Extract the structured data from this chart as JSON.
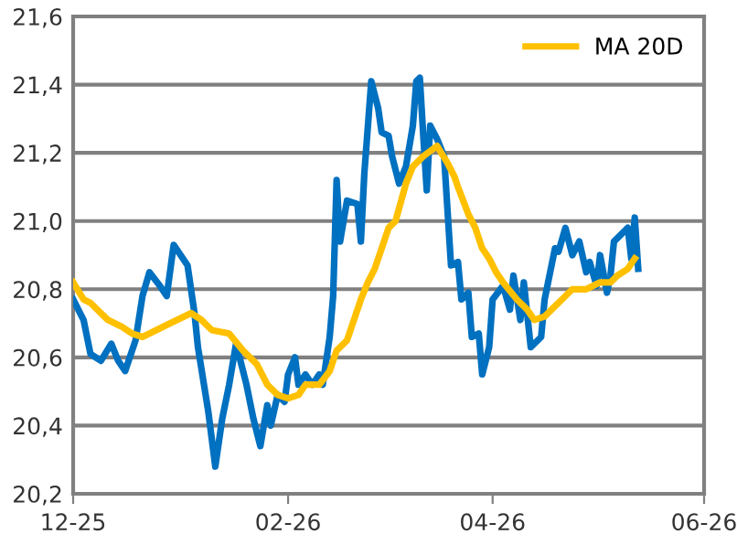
{
  "chart_data": {
    "type": "line",
    "series": [
      {
        "color": "#0070c0",
        "x": [
          "2025-12-01",
          "2025-12-04",
          "2025-12-06",
          "2025-12-09",
          "2025-12-12",
          "2025-12-14",
          "2025-12-16",
          "2025-12-19",
          "2025-12-21",
          "2025-12-23",
          "2025-12-26",
          "2025-12-28",
          "2025-12-30",
          "2026-01-01",
          "2026-01-03",
          "2026-01-05",
          "2026-01-06",
          "2026-01-09",
          "2026-01-11",
          "2026-01-13",
          "2026-01-15",
          "2026-01-17",
          "2026-01-20",
          "2026-01-22",
          "2026-01-24",
          "2026-01-26",
          "2026-01-27",
          "2026-01-29",
          "2026-01-31",
          "2026-02-01",
          "2026-02-03",
          "2026-02-04",
          "2026-02-06",
          "2026-02-08",
          "2026-02-10",
          "2026-02-11",
          "2026-02-13",
          "2026-02-14",
          "2026-02-15",
          "2026-02-16",
          "2026-02-18",
          "2026-02-21",
          "2026-02-22",
          "2026-02-23",
          "2026-02-25",
          "2026-02-27",
          "2026-02-28",
          "2026-03-02",
          "2026-03-03",
          "2026-03-05",
          "2026-03-07",
          "2026-03-09",
          "2026-03-10",
          "2026-03-11",
          "2026-03-12",
          "2026-03-13",
          "2026-03-14",
          "2026-03-16",
          "2026-03-18",
          "2026-03-20",
          "2026-03-22",
          "2026-03-23",
          "2026-03-25",
          "2026-03-26",
          "2026-03-28",
          "2026-03-29",
          "2026-03-31",
          "2026-04-01",
          "2026-04-04",
          "2026-04-06",
          "2026-04-07",
          "2026-04-09",
          "2026-04-10",
          "2026-04-12",
          "2026-04-15",
          "2026-04-16",
          "2026-04-19",
          "2026-04-20",
          "2026-04-22",
          "2026-04-24",
          "2026-04-26",
          "2026-04-28",
          "2026-04-29",
          "2026-05-01",
          "2026-05-02",
          "2026-05-04",
          "2026-05-05",
          "2026-05-06",
          "2026-05-08",
          "2026-05-10",
          "2026-05-11",
          "2026-05-12",
          "2026-05-13"
        ],
        "values": [
          20.77,
          20.71,
          20.61,
          20.59,
          20.64,
          20.59,
          20.56,
          20.65,
          20.78,
          20.85,
          20.81,
          20.78,
          20.93,
          20.9,
          20.87,
          20.73,
          20.63,
          20.44,
          20.28,
          20.42,
          20.52,
          20.64,
          20.52,
          20.42,
          20.34,
          20.46,
          20.4,
          20.49,
          20.47,
          20.55,
          20.6,
          20.52,
          20.55,
          20.52,
          20.55,
          20.52,
          20.66,
          20.78,
          21.12,
          20.94,
          21.06,
          21.05,
          20.94,
          21.14,
          21.41,
          21.33,
          21.26,
          21.25,
          21.19,
          21.11,
          21.16,
          21.28,
          21.41,
          21.42,
          21.25,
          21.09,
          21.28,
          21.24,
          21.19,
          20.87,
          20.88,
          20.77,
          20.79,
          20.66,
          20.67,
          20.55,
          20.63,
          20.77,
          20.81,
          20.74,
          20.84,
          20.71,
          20.82,
          20.63,
          20.66,
          20.77,
          20.92,
          20.91,
          20.98,
          20.9,
          20.94,
          20.85,
          20.88,
          20.81,
          20.9,
          20.79,
          20.84,
          20.94,
          20.96,
          20.98,
          20.89,
          21.01,
          20.86
        ]
      },
      {
        "name": "MA 20D",
        "color": "#ffc000",
        "x": [
          "2025-12-01",
          "2025-12-04",
          "2025-12-06",
          "2025-12-11",
          "2025-12-15",
          "2025-12-18",
          "2025-12-21",
          "2025-12-25",
          "2025-12-29",
          "2026-01-04",
          "2026-01-07",
          "2026-01-10",
          "2026-01-15",
          "2026-01-19",
          "2026-01-23",
          "2026-01-26",
          "2026-01-29",
          "2026-02-01",
          "2026-02-04",
          "2026-02-06",
          "2026-02-10",
          "2026-02-13",
          "2026-02-15",
          "2026-02-18",
          "2026-02-20",
          "2026-02-22",
          "2026-02-24",
          "2026-02-26",
          "2026-02-28",
          "2026-03-02",
          "2026-03-04",
          "2026-03-07",
          "2026-03-09",
          "2026-03-12",
          "2026-03-16",
          "2026-03-19",
          "2026-03-21",
          "2026-03-22",
          "2026-03-25",
          "2026-03-27",
          "2026-03-29",
          "2026-03-31",
          "2026-04-02",
          "2026-04-04",
          "2026-04-08",
          "2026-04-11",
          "2026-04-13",
          "2026-04-16",
          "2026-04-19",
          "2026-04-21",
          "2026-04-24",
          "2026-04-28",
          "2026-05-02",
          "2026-05-05",
          "2026-05-07",
          "2026-05-10",
          "2026-05-12"
        ],
        "values": [
          20.82,
          20.77,
          20.76,
          20.71,
          20.69,
          20.67,
          20.66,
          20.68,
          20.7,
          20.73,
          20.71,
          20.68,
          20.67,
          20.62,
          20.58,
          20.52,
          20.49,
          20.48,
          20.49,
          20.52,
          20.52,
          20.56,
          20.62,
          20.65,
          20.71,
          20.77,
          20.82,
          20.86,
          20.92,
          20.98,
          21.0,
          21.11,
          21.16,
          21.19,
          21.22,
          21.17,
          21.13,
          21.1,
          21.02,
          20.98,
          20.92,
          20.89,
          20.85,
          20.82,
          20.77,
          20.74,
          20.71,
          20.72,
          20.75,
          20.77,
          20.8,
          20.8,
          20.82,
          20.82,
          20.84,
          20.86,
          20.89
        ]
      }
    ],
    "xlim": [
      "2025-12-01",
      "2026-06-01"
    ],
    "xticks": [
      {
        "value": "2025-12-01",
        "label": "12-25"
      },
      {
        "value": "2026-02-01",
        "label": "02-26"
      },
      {
        "value": "2026-04-01",
        "label": "04-26"
      },
      {
        "value": "2026-06-01",
        "label": "06-26"
      }
    ],
    "ylim": [
      20.2,
      21.6
    ],
    "yticks": [
      {
        "value": 20.2,
        "label": "20,2"
      },
      {
        "value": 20.4,
        "label": "20,4"
      },
      {
        "value": 20.6,
        "label": "20,6"
      },
      {
        "value": 20.8,
        "label": "20,8"
      },
      {
        "value": 21.0,
        "label": "21,0"
      },
      {
        "value": 21.2,
        "label": "21,2"
      },
      {
        "value": 21.4,
        "label": "21,4"
      },
      {
        "value": 21.6,
        "label": "21,6"
      }
    ],
    "grid": "y",
    "legend": "top right",
    "line_style": "solid"
  }
}
